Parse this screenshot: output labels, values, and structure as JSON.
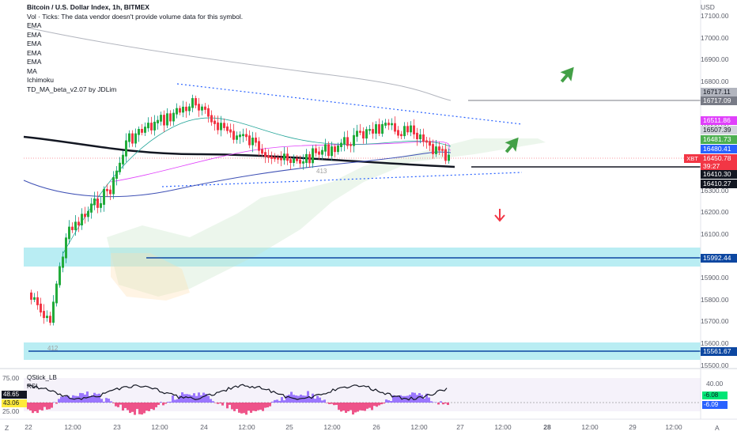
{
  "legend": {
    "title": "Bitcoin / U.S. Dollar Index, 1h, BITMEX",
    "volume_note": "Vol · Ticks: The data vendor doesn't provide volume data for this symbol.",
    "indicators": [
      "EMA",
      "EMA",
      "EMA",
      "EMA",
      "EMA",
      "MA",
      "Ichimoku",
      "TD_MA_beta_v2.07 by JDLim"
    ]
  },
  "price_axis": {
    "currency": "USD",
    "ticks": [
      "17100.00",
      "17000.00",
      "16900.00",
      "16800.00",
      "16700.00",
      "16600.00",
      "16500.00",
      "16400.00",
      "16300.00",
      "16200.00",
      "16100.00",
      "16000.00",
      "15900.00",
      "15800.00",
      "15700.00",
      "15600.00",
      "15500.00"
    ]
  },
  "price_tags": [
    {
      "label": "16717.11",
      "bg": "#b2b5be",
      "fg": "#131722"
    },
    {
      "label": "16717.09",
      "bg": "#787b86",
      "fg": "#ffffff"
    },
    {
      "label": "16511.86",
      "bg": "#e040fb",
      "fg": "#ffffff"
    },
    {
      "label": "16507.39",
      "bg": "#d1d4dc",
      "fg": "#131722"
    },
    {
      "label": "16481.73",
      "bg": "#4caf50",
      "fg": "#ffffff"
    },
    {
      "label": "16480.41",
      "bg": "#2962ff",
      "fg": "#ffffff"
    },
    {
      "label": "16450.78",
      "bg": "#f23645",
      "fg": "#ffffff"
    },
    {
      "label": "39:27",
      "bg": "#f23645",
      "fg": "#ffffff"
    },
    {
      "label": "16410.30",
      "bg": "#131722",
      "fg": "#ffffff"
    },
    {
      "label": "16410.27",
      "bg": "#131722",
      "fg": "#ffffff"
    },
    {
      "label": "15992.44",
      "bg": "#0d47a1",
      "fg": "#ffffff"
    },
    {
      "label": "15561.67",
      "bg": "#0d47a1",
      "fg": "#ffffff"
    }
  ],
  "symbol_badge": "XBT",
  "time_axis": [
    "22",
    "12:00",
    "23",
    "12:00",
    "24",
    "12:00",
    "25",
    "12:00",
    "26",
    "12:00",
    "27",
    "12:00",
    "28",
    "12:00",
    "29",
    "12:00"
  ],
  "oscillator": {
    "labels": [
      "QStick_LB",
      "RSI"
    ],
    "ticks": [
      "75.00",
      "25.00",
      "40.00"
    ],
    "left_tags": [
      {
        "label": "48.65",
        "bg": "#131722",
        "fg": "#ffffff"
      },
      {
        "label": "43.06",
        "bg": "#ffeb3b",
        "fg": "#131722"
      }
    ],
    "right_tags": [
      {
        "label": "-6.08",
        "bg": "#00e676",
        "fg": "#131722"
      },
      {
        "label": "-6.09",
        "bg": "#2962ff",
        "fg": "#ffffff"
      }
    ]
  },
  "corners": {
    "left": "Z",
    "right": "A"
  },
  "candle_labels": [
    "412",
    "413"
  ]
}
